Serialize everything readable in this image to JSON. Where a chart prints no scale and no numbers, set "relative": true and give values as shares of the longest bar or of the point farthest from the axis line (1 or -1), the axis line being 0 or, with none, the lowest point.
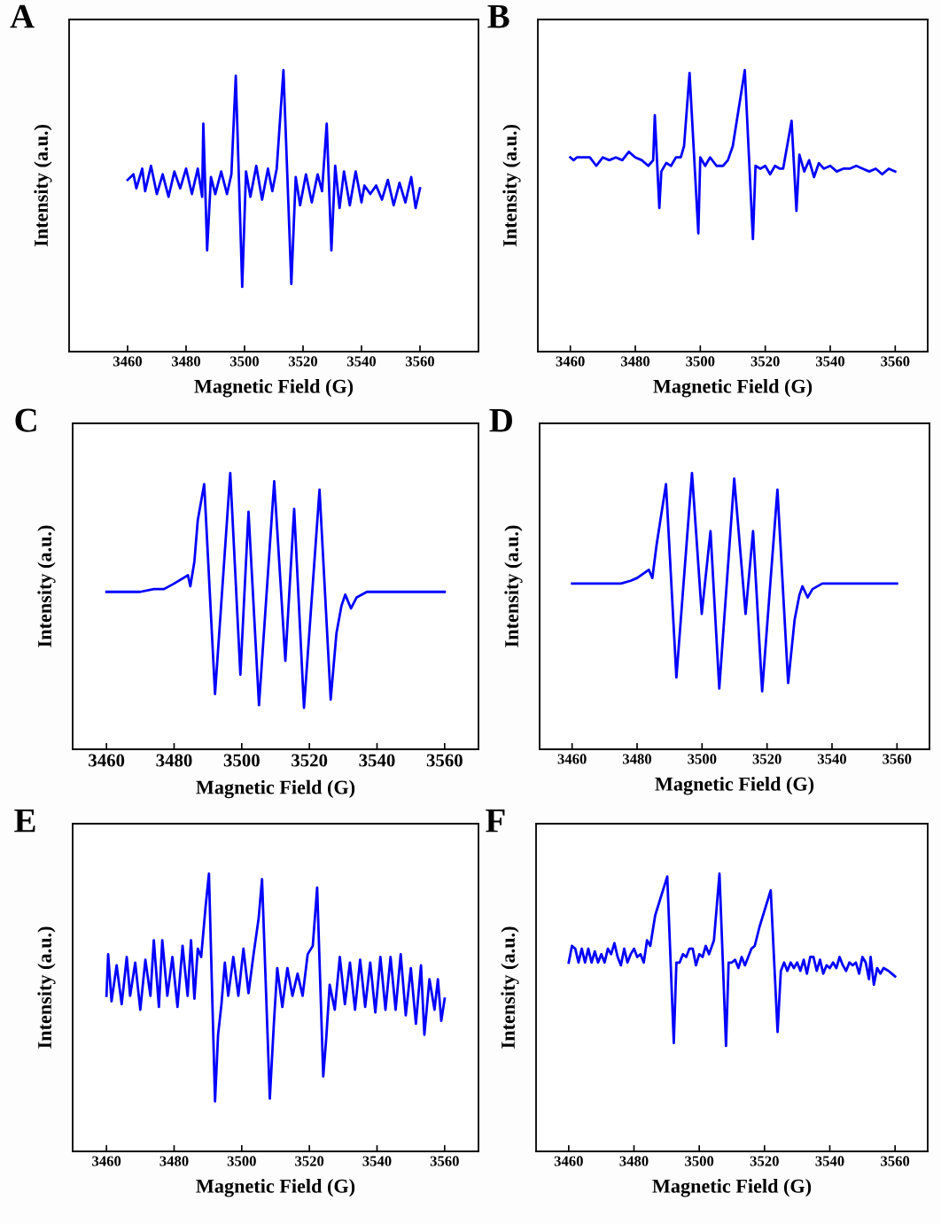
{
  "chart_data": [
    {
      "type": "line",
      "title": "A",
      "xlabel": "Magnetic Field (G)",
      "ylabel": "Intensity (a.u.)",
      "relative": true,
      "tick_labels": "x",
      "grid": false,
      "xlim": [
        3440,
        3580
      ],
      "xticks": [
        3460,
        3480,
        3500,
        3520,
        3540,
        3560
      ],
      "series": [
        {
          "color": "#0000ff",
          "x": [
            3460,
            3462,
            3463,
            3465,
            3466,
            3468,
            3470,
            3472,
            3474,
            3476,
            3478,
            3480,
            3482,
            3484,
            3485.5,
            3485.9,
            3487.2,
            3488.5,
            3490,
            3492,
            3494,
            3495.5,
            3497.0,
            3499.2,
            3500.5,
            3502,
            3504,
            3506,
            3508,
            3509.5,
            3511,
            3513.3,
            3516.0,
            3517.5,
            3519,
            3521,
            3523,
            3525,
            3526.5,
            3528.1,
            3529.7,
            3531,
            3532.5,
            3534,
            3536,
            3538,
            3540,
            3541,
            3543,
            3545,
            3547,
            3549,
            3551,
            3553,
            3555,
            3557,
            3558.5,
            3560
          ],
          "values": [
            0.61,
            0.63,
            0.58,
            0.65,
            0.57,
            0.66,
            0.56,
            0.63,
            0.55,
            0.64,
            0.58,
            0.65,
            0.56,
            0.65,
            0.55,
            0.81,
            0.36,
            0.62,
            0.56,
            0.64,
            0.56,
            0.63,
            0.98,
            0.23,
            0.64,
            0.55,
            0.66,
            0.54,
            0.65,
            0.57,
            0.65,
            1,
            0.24,
            0.62,
            0.52,
            0.63,
            0.53,
            0.63,
            0.57,
            0.81,
            0.36,
            0.66,
            0.51,
            0.64,
            0.52,
            0.64,
            0.53,
            0.59,
            0.56,
            0.59,
            0.54,
            0.61,
            0.52,
            0.6,
            0.53,
            0.62,
            0.51,
            0.58
          ]
        }
      ]
    },
    {
      "type": "line",
      "title": "B",
      "xlabel": "Magnetic Field (G)",
      "ylabel": "Intensity (a.u.)",
      "relative": true,
      "tick_labels": "x",
      "grid": false,
      "xlim": [
        3450,
        3570
      ],
      "xticks": [
        3460,
        3480,
        3500,
        3520,
        3540,
        3560
      ],
      "series": [
        {
          "color": "#0000ff",
          "x": [
            3460,
            3461,
            3462,
            3464,
            3466,
            3468,
            3470,
            3472,
            3474,
            3476,
            3478,
            3480,
            3482,
            3484,
            3485.5,
            3486.0,
            3487.4,
            3488,
            3489.5,
            3491,
            3492.5,
            3494,
            3495,
            3496.7,
            3499.4,
            3500,
            3501.5,
            3503,
            3505,
            3507,
            3508.5,
            3510,
            3513.7,
            3516.2,
            3517,
            3518.5,
            3520,
            3521.5,
            3523,
            3524.5,
            3525.5,
            3528.1,
            3529.6,
            3530.5,
            3532,
            3533.5,
            3535,
            3536.5,
            3538,
            3540,
            3542,
            3544,
            3546,
            3548,
            3550,
            3552,
            3554,
            3556,
            3558,
            3560
          ],
          "values": [
            0.69,
            0.68,
            0.69,
            0.69,
            0.69,
            0.66,
            0.69,
            0.68,
            0.69,
            0.68,
            0.71,
            0.69,
            0.68,
            0.66,
            0.68,
            0.84,
            0.51,
            0.64,
            0.67,
            0.66,
            0.69,
            0.69,
            0.73,
            0.99,
            0.42,
            0.69,
            0.66,
            0.69,
            0.66,
            0.66,
            0.68,
            0.73,
            1,
            0.4,
            0.66,
            0.65,
            0.66,
            0.63,
            0.66,
            0.65,
            0.65,
            0.82,
            0.5,
            0.7,
            0.64,
            0.68,
            0.62,
            0.67,
            0.65,
            0.66,
            0.64,
            0.65,
            0.65,
            0.66,
            0.65,
            0.64,
            0.65,
            0.63,
            0.65,
            0.64
          ]
        }
      ]
    },
    {
      "type": "line",
      "title": "C",
      "xlabel": "Magnetic Field (G)",
      "ylabel": "Intensity (a.u.)",
      "relative": true,
      "tick_labels": "x",
      "grid": false,
      "xlim": [
        3450,
        3570
      ],
      "xticks": [
        3460,
        3480,
        3500,
        3520,
        3540,
        3560
      ],
      "series": [
        {
          "color": "#0000ff",
          "x": [
            3460,
            3463,
            3466,
            3470,
            3474,
            3477,
            3480,
            3484.1,
            3484.8,
            3486,
            3487,
            3488.9,
            3492.1,
            3496.6,
            3499.6,
            3502.0,
            3505.1,
            3509.6,
            3512.9,
            3515.5,
            3518.4,
            3523.0,
            3526.3,
            3528,
            3529.5,
            3530.6,
            3532.3,
            3534,
            3537,
            3540,
            3545,
            3550,
            3555,
            3560
          ],
          "values": [
            0.57,
            0.57,
            0.57,
            0.57,
            0.58,
            0.58,
            0.6,
            0.63,
            0.59,
            0.68,
            0.83,
            0.96,
            0.2,
            1,
            0.27,
            0.86,
            0.16,
            0.97,
            0.32,
            0.87,
            0.15,
            0.94,
            0.18,
            0.42,
            0.52,
            0.56,
            0.51,
            0.55,
            0.57,
            0.57,
            0.57,
            0.57,
            0.57,
            0.57
          ]
        }
      ]
    },
    {
      "type": "line",
      "title": "D",
      "xlabel": "Magnetic Field (G)",
      "ylabel": "Intensity (a.u.)",
      "relative": true,
      "tick_labels": "x",
      "grid": false,
      "xlim": [
        3450,
        3570
      ],
      "xticks": [
        3460,
        3480,
        3500,
        3520,
        3540,
        3560
      ],
      "series": [
        {
          "color": "#0000ff",
          "x": [
            3460,
            3465,
            3470,
            3475,
            3478,
            3480,
            3483.6,
            3484.7,
            3486,
            3488.9,
            3492.1,
            3496.9,
            3499.9,
            3502.6,
            3505.3,
            3509.9,
            3513.4,
            3515.7,
            3518.5,
            3523.2,
            3526.5,
            3528.5,
            3530,
            3530.9,
            3532.5,
            3534,
            3537,
            3540,
            3545,
            3550,
            3555,
            3560
          ],
          "values": [
            0.6,
            0.6,
            0.6,
            0.6,
            0.61,
            0.62,
            0.65,
            0.62,
            0.74,
            0.96,
            0.26,
            1,
            0.49,
            0.79,
            0.22,
            0.98,
            0.49,
            0.79,
            0.21,
            0.94,
            0.24,
            0.47,
            0.56,
            0.59,
            0.55,
            0.58,
            0.6,
            0.6,
            0.6,
            0.6,
            0.6,
            0.6
          ]
        }
      ]
    },
    {
      "type": "line",
      "title": "E",
      "xlabel": "Magnetic Field (G)",
      "ylabel": "Intensity (a.u.)",
      "relative": true,
      "tick_labels": "x",
      "grid": false,
      "xlim": [
        3450,
        3570
      ],
      "xticks": [
        3460,
        3480,
        3500,
        3520,
        3540,
        3560
      ],
      "series": [
        {
          "color": "#0000ff",
          "x": [
            3460,
            3460.5,
            3461.5,
            3463,
            3464.5,
            3466,
            3467,
            3468.5,
            3470,
            3471.5,
            3473,
            3474,
            3475.5,
            3476.5,
            3478,
            3479.5,
            3481,
            3482.5,
            3484,
            3485,
            3486,
            3487,
            3488,
            3489.3,
            3490.3,
            3492.1,
            3493,
            3494,
            3495,
            3496,
            3497.5,
            3499,
            3500.5,
            3502,
            3503.5,
            3505,
            3506.0,
            3508.3,
            3509.5,
            3510.5,
            3512,
            3513.5,
            3515,
            3516.5,
            3518,
            3519.5,
            3521,
            3522.3,
            3524.1,
            3525,
            3526,
            3527.5,
            3529,
            3530.5,
            3532,
            3533.5,
            3535,
            3536.5,
            3538,
            3539.5,
            3541,
            3542.5,
            3544,
            3545.5,
            3547,
            3548.5,
            3550,
            3551.5,
            3553,
            3554,
            3555.5,
            3557,
            3558,
            3559,
            3560
          ],
          "values": [
            0.56,
            0.71,
            0.54,
            0.67,
            0.53,
            0.7,
            0.56,
            0.68,
            0.51,
            0.69,
            0.56,
            0.76,
            0.52,
            0.76,
            0.56,
            0.7,
            0.52,
            0.74,
            0.56,
            0.76,
            0.55,
            0.73,
            0.7,
            0.88,
            1,
            0.18,
            0.42,
            0.53,
            0.68,
            0.56,
            0.7,
            0.56,
            0.73,
            0.57,
            0.71,
            0.84,
            0.98,
            0.19,
            0.46,
            0.66,
            0.52,
            0.66,
            0.56,
            0.64,
            0.56,
            0.71,
            0.74,
            0.95,
            0.27,
            0.41,
            0.6,
            0.51,
            0.7,
            0.53,
            0.68,
            0.51,
            0.69,
            0.52,
            0.68,
            0.5,
            0.7,
            0.51,
            0.7,
            0.51,
            0.71,
            0.49,
            0.66,
            0.46,
            0.67,
            0.42,
            0.62,
            0.51,
            0.62,
            0.47,
            0.55
          ]
        }
      ]
    },
    {
      "type": "line",
      "title": "F",
      "xlabel": "Magnetic Field (G)",
      "ylabel": "Intensity (a.u.)",
      "relative": true,
      "tick_labels": "x",
      "grid": false,
      "xlim": [
        3450,
        3570
      ],
      "xticks": [
        3460,
        3480,
        3500,
        3520,
        3540,
        3560
      ],
      "series": [
        {
          "color": "#0000ff",
          "x": [
            3460,
            3461,
            3462,
            3463,
            3464,
            3465,
            3466,
            3467,
            3468,
            3469,
            3470,
            3471,
            3472,
            3473,
            3474,
            3475,
            3476,
            3477,
            3478,
            3479,
            3480,
            3481,
            3482,
            3483,
            3484,
            3485,
            3486.5,
            3490.2,
            3492.2,
            3493,
            3494,
            3495,
            3496,
            3497,
            3498,
            3499,
            3500,
            3501,
            3502,
            3503,
            3504.5,
            3506.2,
            3508.2,
            3509,
            3510,
            3511,
            3512,
            3513,
            3514,
            3515,
            3516,
            3517,
            3518.5,
            3521.9,
            3524.0,
            3525,
            3526,
            3527,
            3528,
            3529,
            3530,
            3531,
            3532,
            3533,
            3534,
            3535,
            3536,
            3537,
            3538,
            3539,
            3540,
            3541,
            3542,
            3543,
            3544,
            3545,
            3546,
            3547,
            3548,
            3549,
            3550,
            3551,
            3552,
            3552.5,
            3553.5,
            3554.5,
            3555.5,
            3556.5,
            3558,
            3559,
            3560
          ],
          "values": [
            0.68,
            0.74,
            0.73,
            0.68,
            0.73,
            0.68,
            0.73,
            0.68,
            0.72,
            0.68,
            0.71,
            0.68,
            0.73,
            0.71,
            0.75,
            0.7,
            0.67,
            0.73,
            0.68,
            0.71,
            0.73,
            0.7,
            0.71,
            0.68,
            0.76,
            0.74,
            0.85,
            0.99,
            0.39,
            0.68,
            0.68,
            0.71,
            0.7,
            0.73,
            0.73,
            0.67,
            0.71,
            0.7,
            0.74,
            0.71,
            0.76,
            1,
            0.38,
            0.68,
            0.68,
            0.69,
            0.66,
            0.7,
            0.67,
            0.7,
            0.73,
            0.74,
            0.81,
            0.94,
            0.43,
            0.65,
            0.68,
            0.65,
            0.68,
            0.66,
            0.68,
            0.65,
            0.69,
            0.64,
            0.7,
            0.7,
            0.65,
            0.69,
            0.64,
            0.67,
            0.66,
            0.68,
            0.66,
            0.7,
            0.67,
            0.65,
            0.68,
            0.67,
            0.68,
            0.64,
            0.7,
            0.68,
            0.62,
            0.7,
            0.6,
            0.66,
            0.64,
            0.66,
            0.65,
            0.64,
            0.63
          ]
        }
      ]
    }
  ]
}
